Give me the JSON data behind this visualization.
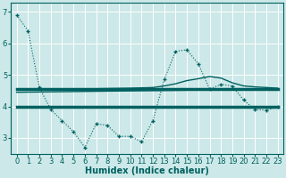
{
  "xlabel": "Humidex (Indice chaleur)",
  "xlim": [
    -0.5,
    23.5
  ],
  "ylim": [
    2.5,
    7.3
  ],
  "yticks": [
    3,
    4,
    5,
    6,
    7
  ],
  "xticks": [
    0,
    1,
    2,
    3,
    4,
    5,
    6,
    7,
    8,
    9,
    10,
    11,
    12,
    13,
    14,
    15,
    16,
    17,
    18,
    19,
    20,
    21,
    22,
    23
  ],
  "bg_color": "#cce8e8",
  "grid_color": "#ffffff",
  "line_color": "#006060",
  "line1_x": [
    0,
    1,
    2,
    3,
    4,
    5,
    6,
    7,
    8,
    9,
    10,
    11,
    12,
    13,
    14,
    15,
    16,
    17,
    18,
    19,
    20,
    21,
    22,
    23
  ],
  "line1_y": [
    6.9,
    6.4,
    4.6,
    3.9,
    3.55,
    3.2,
    2.7,
    3.45,
    3.4,
    3.05,
    3.05,
    2.88,
    3.55,
    4.85,
    5.75,
    5.8,
    5.35,
    4.55,
    4.7,
    4.65,
    4.2,
    3.9,
    3.88,
    3.98
  ],
  "line2_x": [
    0,
    23
  ],
  "line2_y": [
    4.55,
    4.55
  ],
  "line3_x": [
    0,
    23
  ],
  "line3_y": [
    4.0,
    4.0
  ],
  "line4_x": [
    2,
    5,
    10,
    12,
    13,
    14,
    15,
    16,
    17,
    18,
    19,
    20,
    21,
    22,
    23
  ],
  "line4_y": [
    4.55,
    4.55,
    4.58,
    4.6,
    4.65,
    4.72,
    4.82,
    4.88,
    4.95,
    4.9,
    4.75,
    4.65,
    4.62,
    4.6,
    4.58
  ],
  "line5_x": [
    0,
    23
  ],
  "line5_y": [
    4.45,
    4.55
  ]
}
